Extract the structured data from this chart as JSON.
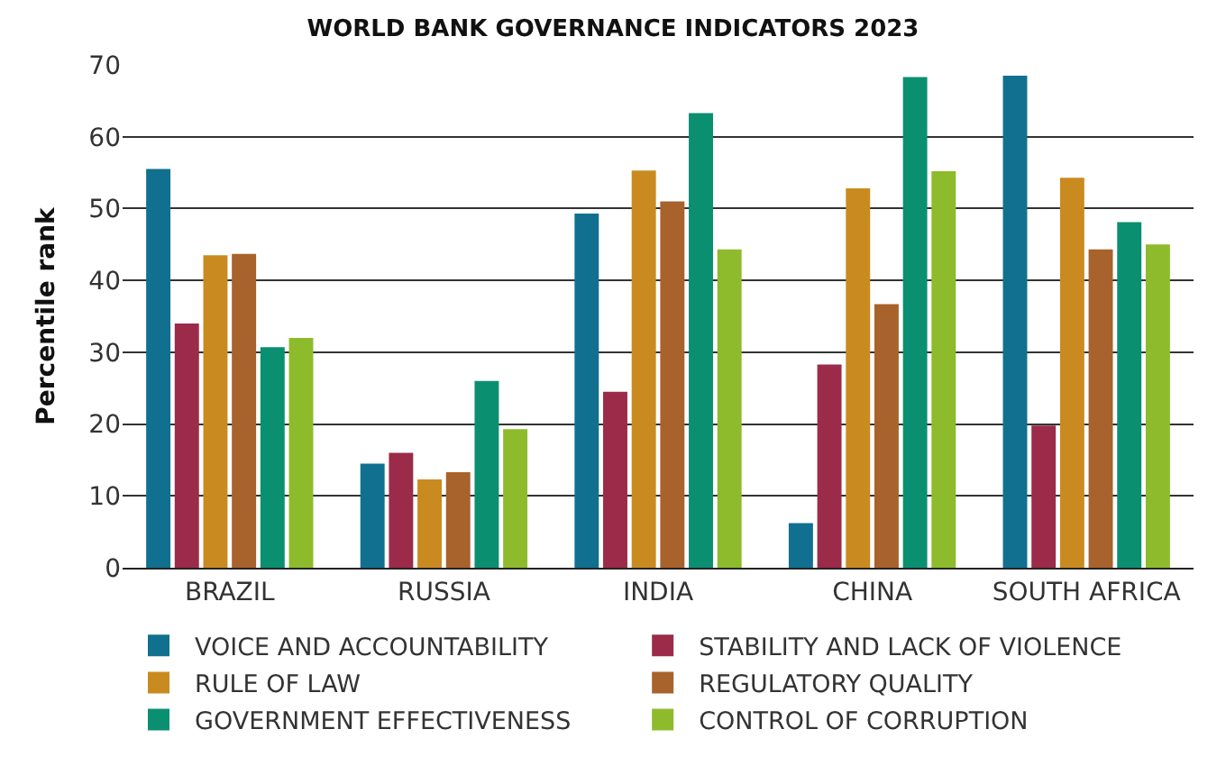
{
  "chart_data": {
    "type": "bar",
    "title": "WORLD BANK GOVERNANCE INDICATORS 2023",
    "ylabel": "Percentile rank",
    "categories": [
      "BRAZIL",
      "RUSSIA",
      "INDIA",
      "CHINA",
      "SOUTH AFRICA"
    ],
    "series": [
      {
        "name": "VOICE AND ACCOUNTABILITY",
        "color": "#11708f",
        "values": [
          55.5,
          14.5,
          49.3,
          6.2,
          68.5
        ]
      },
      {
        "name": "STABILITY AND LACK OF VIOLENCE",
        "color": "#9b2b49",
        "values": [
          34,
          16,
          24.5,
          28.3,
          19.8
        ]
      },
      {
        "name": "RULE OF LAW",
        "color": "#c98b20",
        "values": [
          43.5,
          12.3,
          55.3,
          52.8,
          54.3
        ]
      },
      {
        "name": "REGULATORY QUALITY",
        "color": "#a8622c",
        "values": [
          43.7,
          13.3,
          51,
          36.7,
          44.3
        ]
      },
      {
        "name": "GOVERNMENT EFFECTIVENESS",
        "color": "#0b8f71",
        "values": [
          30.7,
          26,
          63.3,
          68.3,
          48.1
        ]
      },
      {
        "name": "CONTROL OF CORRUPTION",
        "color": "#8dbb2b",
        "values": [
          32,
          19.3,
          44.3,
          55.2,
          45
        ]
      }
    ],
    "ylim": [
      0,
      70
    ],
    "yticks": [
      0,
      10,
      20,
      30,
      40,
      50,
      60,
      70
    ],
    "grid": "y",
    "legend": "bottom"
  }
}
